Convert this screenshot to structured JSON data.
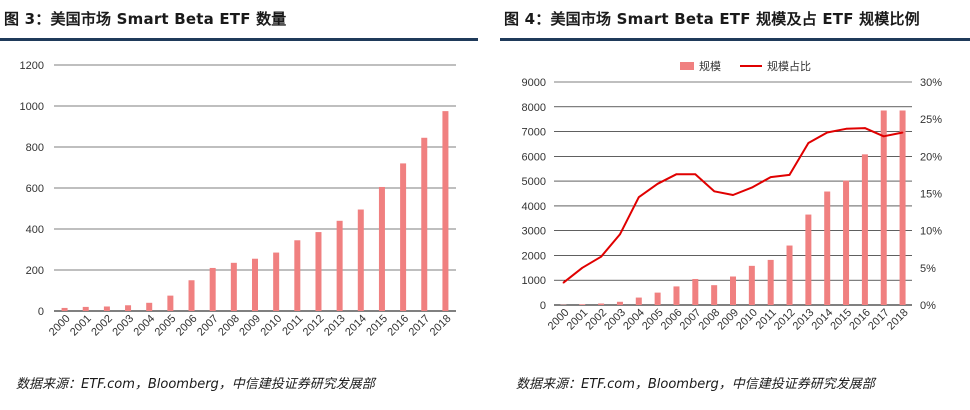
{
  "figures": [
    {
      "title": "图 3：美国市场 Smart Beta ETF 数量",
      "source": "数据来源：ETF.com，Bloomberg，中信建投证券研究发展部"
    },
    {
      "title": "图 4：美国市场 Smart Beta ETF 规模及占 ETF 规模比例",
      "source": "数据来源：ETF.com，Bloomberg，中信建投证券研究发展部"
    }
  ],
  "colors": {
    "bar": "#f08080",
    "line": "#e00000",
    "rule": "#1f3a5a",
    "grid": "#000000"
  },
  "chart_data": [
    {
      "type": "bar",
      "categories": [
        "2000",
        "2001",
        "2002",
        "2003",
        "2004",
        "2005",
        "2006",
        "2007",
        "2008",
        "2009",
        "2010",
        "2011",
        "2012",
        "2013",
        "2014",
        "2015",
        "2016",
        "2017",
        "2018"
      ],
      "values": [
        15,
        20,
        22,
        28,
        40,
        75,
        150,
        210,
        235,
        255,
        285,
        345,
        385,
        440,
        495,
        605,
        720,
        845,
        975
      ],
      "ylim": [
        0,
        1200
      ],
      "yticks": [
        "0",
        "200",
        "400",
        "600",
        "800",
        "1000",
        "1200"
      ],
      "grid": true
    },
    {
      "type": "bar",
      "categories": [
        "2000",
        "2001",
        "2002",
        "2003",
        "2004",
        "2005",
        "2006",
        "2007",
        "2008",
        "2009",
        "2010",
        "2011",
        "2012",
        "2013",
        "2014",
        "2015",
        "2016",
        "2017",
        "2018"
      ],
      "series": [
        {
          "name": "规模",
          "type": "bar",
          "axis": "left",
          "values": [
            10,
            30,
            60,
            130,
            300,
            500,
            750,
            1050,
            800,
            1150,
            1580,
            1820,
            2400,
            3650,
            4580,
            5020,
            6080,
            7850,
            7850
          ]
        },
        {
          "name": "规模占比",
          "type": "line",
          "axis": "right",
          "values": [
            3.0,
            5.0,
            6.5,
            9.5,
            14.5,
            16.3,
            17.6,
            17.6,
            15.3,
            14.8,
            15.8,
            17.2,
            17.5,
            21.8,
            23.2,
            23.7,
            23.8,
            22.7,
            23.2
          ]
        }
      ],
      "ylim": [
        0,
        9000
      ],
      "y2lim": [
        0,
        30
      ],
      "yticks": [
        "0",
        "1000",
        "2000",
        "3000",
        "4000",
        "5000",
        "6000",
        "7000",
        "8000",
        "9000"
      ],
      "y2ticks": [
        "0%",
        "5%",
        "10%",
        "15%",
        "20%",
        "25%",
        "30%"
      ],
      "legend": "top-center",
      "grid": true
    }
  ]
}
